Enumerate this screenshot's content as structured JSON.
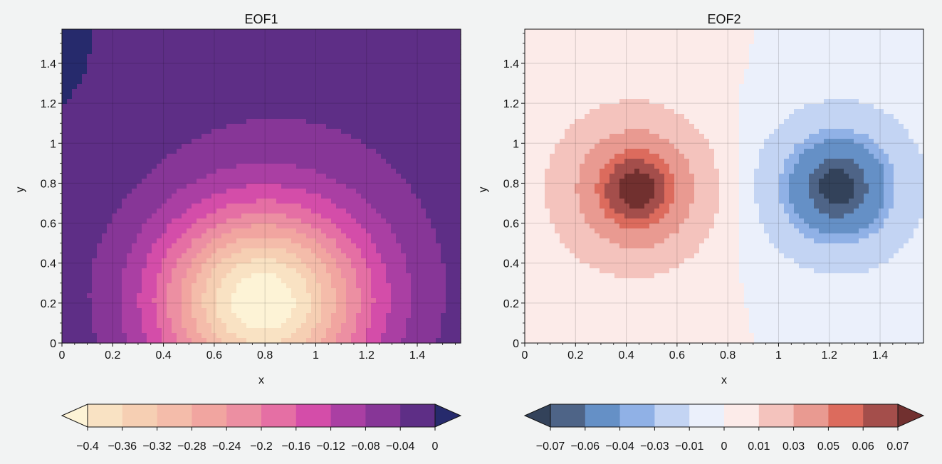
{
  "chart_data": [
    {
      "type": "contourf",
      "title": "EOF1",
      "xlabel": "x",
      "ylabel": "y",
      "xlim": [
        0,
        1.571
      ],
      "ylim": [
        0,
        1.571
      ],
      "x_ticks": [
        "0",
        "0.2",
        "0.4",
        "0.6",
        "0.8",
        "1",
        "1.2",
        "1.4"
      ],
      "y_ticks": [
        "0",
        "0.2",
        "0.4",
        "0.6",
        "0.8",
        "1",
        "1.2",
        "1.4"
      ],
      "grid": true,
      "field": {
        "peak_x": 0.79,
        "peak_y": 0.2,
        "min_value": -0.4,
        "plateau_value": -0.04,
        "outer_value": 0.0,
        "trough_x": 0.05,
        "trough_y": 1.3,
        "trough_value": 0.01
      },
      "colormap": [
        "#fdf3d6",
        "#f9e2c3",
        "#f6cfb3",
        "#f4bcaa",
        "#f1a5a0",
        "#ec8fa2",
        "#e56fa4",
        "#d44da9",
        "#aa3fa3",
        "#873697",
        "#5e2e86",
        "#262a6c"
      ],
      "colorbar": {
        "orientation": "horizontal",
        "extend": "both",
        "levels": [
          -0.4,
          -0.36,
          -0.32,
          -0.28,
          -0.24,
          -0.2,
          -0.16,
          -0.12,
          -0.08,
          -0.04,
          0
        ],
        "tick_labels": [
          "−0.4",
          "−0.36",
          "−0.32",
          "−0.28",
          "−0.24",
          "−0.2",
          "−0.16",
          "−0.12",
          "−0.08",
          "−0.04",
          "0"
        ]
      }
    },
    {
      "type": "contourf",
      "title": "EOF2",
      "xlabel": "x",
      "ylabel": "y",
      "xlim": [
        0,
        1.571
      ],
      "ylim": [
        0,
        1.571
      ],
      "x_ticks": [
        "0",
        "0.2",
        "0.4",
        "0.6",
        "0.8",
        "1",
        "1.2",
        "1.4"
      ],
      "y_ticks": [
        "0",
        "0.2",
        "0.4",
        "0.6",
        "0.8",
        "1",
        "1.2",
        "1.4"
      ],
      "grid": true,
      "field": {
        "pos_peak_x": 0.44,
        "pos_peak_y": 0.77,
        "pos_value": 0.075,
        "neg_peak_x": 1.23,
        "neg_peak_y": 0.78,
        "neg_value": -0.075
      },
      "colormap": [
        "#33425a",
        "#4e6487",
        "#6590c6",
        "#90b1e6",
        "#c3d4f3",
        "#ebf0fb",
        "#fcebe9",
        "#f4c3bd",
        "#e99a91",
        "#dc6b5d",
        "#a44e4b",
        "#71302f"
      ],
      "colorbar": {
        "orientation": "horizontal",
        "extend": "both",
        "levels": [
          -0.07,
          -0.06,
          -0.04,
          -0.03,
          -0.01,
          0,
          0.01,
          0.03,
          0.05,
          0.06,
          0.07
        ],
        "tick_labels": [
          "−0.07",
          "−0.06",
          "−0.04",
          "−0.03",
          "−0.01",
          "0",
          "0.01",
          "0.03",
          "0.05",
          "0.06",
          "0.07"
        ]
      }
    }
  ]
}
